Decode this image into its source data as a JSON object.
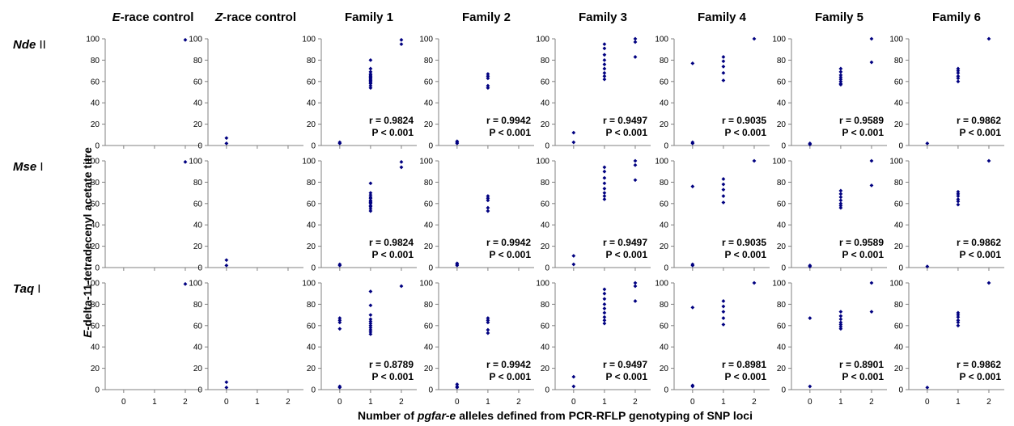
{
  "figure": {
    "ylabel": {
      "italic": "E",
      "rest": "-delta-11-tetradecenyl acetate titre"
    },
    "xlabel": {
      "pre": "Number of ",
      "italic": "pgfar-e",
      "post": " alleles defined from PCR-RFLP genotyping of SNP loci"
    },
    "y_ticks": [
      "0",
      "20",
      "40",
      "60",
      "80",
      "100"
    ],
    "x_ticks": [
      "0",
      "1",
      "2"
    ],
    "marker_color": "#000080"
  },
  "columns": [
    {
      "italic": "E",
      "rest": "-race control"
    },
    {
      "italic": "Z",
      "rest": "-race control"
    },
    {
      "italic": "",
      "rest": "Family 1"
    },
    {
      "italic": "",
      "rest": "Family 2"
    },
    {
      "italic": "",
      "rest": "Family 3"
    },
    {
      "italic": "",
      "rest": "Family 4"
    },
    {
      "italic": "",
      "rest": "Family 5"
    },
    {
      "italic": "",
      "rest": "Family 6"
    }
  ],
  "rows": [
    {
      "bold": "Nde",
      "rest": " II"
    },
    {
      "bold": "Mse",
      "rest": " I"
    },
    {
      "bold": "Taq",
      "rest": " I"
    }
  ],
  "chart_data": {
    "type": "scatter",
    "xlim": [
      -0.6,
      2.5
    ],
    "ylim": [
      0,
      100
    ],
    "grid": false,
    "panels": [
      [
        {
          "points": [
            [
              2,
              99
            ]
          ]
        },
        {
          "points": [
            [
              0,
              7
            ],
            [
              0,
              2
            ]
          ]
        },
        {
          "points": [
            [
              0,
              3
            ],
            [
              0,
              2
            ],
            [
              1,
              80
            ],
            [
              1,
              72
            ],
            [
              1,
              69
            ],
            [
              1,
              67
            ],
            [
              1,
              66
            ],
            [
              1,
              65
            ],
            [
              1,
              64
            ],
            [
              1,
              63
            ],
            [
              1,
              62
            ],
            [
              1,
              61
            ],
            [
              1,
              60
            ],
            [
              1,
              59
            ],
            [
              1,
              58
            ],
            [
              1,
              56
            ],
            [
              1,
              54
            ],
            [
              2,
              99
            ],
            [
              2,
              95
            ]
          ],
          "stats": [
            "r = 0.9824",
            "P < 0.001"
          ]
        },
        {
          "points": [
            [
              0,
              4
            ],
            [
              0,
              3
            ],
            [
              0,
              2
            ],
            [
              1,
              67
            ],
            [
              1,
              65
            ],
            [
              1,
              63
            ],
            [
              1,
              56
            ],
            [
              1,
              54
            ]
          ],
          "stats": [
            "r = 0.9942",
            "P < 0.001"
          ]
        },
        {
          "points": [
            [
              0,
              12
            ],
            [
              0,
              3
            ],
            [
              1,
              95
            ],
            [
              1,
              91
            ],
            [
              1,
              85
            ],
            [
              1,
              80
            ],
            [
              1,
              76
            ],
            [
              1,
              72
            ],
            [
              1,
              68
            ],
            [
              1,
              65
            ],
            [
              1,
              62
            ],
            [
              2,
              100
            ],
            [
              2,
              97
            ],
            [
              2,
              83
            ]
          ],
          "stats": [
            "r = 0.9497",
            "P < 0.001"
          ]
        },
        {
          "points": [
            [
              0,
              77
            ],
            [
              0,
              3
            ],
            [
              0,
              2
            ],
            [
              1,
              83
            ],
            [
              1,
              79
            ],
            [
              1,
              74
            ],
            [
              1,
              68
            ],
            [
              1,
              61
            ],
            [
              2,
              100
            ]
          ],
          "stats": [
            "r = 0.9035",
            "P < 0.001"
          ]
        },
        {
          "points": [
            [
              0,
              2
            ],
            [
              0,
              1
            ],
            [
              1,
              72
            ],
            [
              1,
              69
            ],
            [
              1,
              66
            ],
            [
              1,
              64
            ],
            [
              1,
              62
            ],
            [
              1,
              60
            ],
            [
              1,
              58
            ],
            [
              1,
              57
            ],
            [
              2,
              100
            ],
            [
              2,
              78
            ]
          ],
          "stats": [
            "r = 0.9589",
            "P < 0.001"
          ]
        },
        {
          "points": [
            [
              0,
              2
            ],
            [
              1,
              72
            ],
            [
              1,
              70
            ],
            [
              1,
              68
            ],
            [
              1,
              65
            ],
            [
              1,
              63
            ],
            [
              1,
              60
            ],
            [
              2,
              100
            ]
          ],
          "stats": [
            "r = 0.9862",
            "P < 0.001"
          ]
        }
      ],
      [
        {
          "points": [
            [
              2,
              99
            ]
          ]
        },
        {
          "points": [
            [
              0,
              7
            ],
            [
              0,
              2
            ]
          ]
        },
        {
          "points": [
            [
              0,
              3
            ],
            [
              0,
              2
            ],
            [
              1,
              79
            ],
            [
              1,
              70
            ],
            [
              1,
              68
            ],
            [
              1,
              66
            ],
            [
              1,
              65
            ],
            [
              1,
              63
            ],
            [
              1,
              62
            ],
            [
              1,
              61
            ],
            [
              1,
              60
            ],
            [
              1,
              58
            ],
            [
              1,
              57
            ],
            [
              1,
              55
            ],
            [
              1,
              53
            ],
            [
              2,
              99
            ],
            [
              2,
              94
            ]
          ],
          "stats": [
            "r = 0.9824",
            "P < 0.001"
          ]
        },
        {
          "points": [
            [
              0,
              4
            ],
            [
              0,
              3
            ],
            [
              0,
              2
            ],
            [
              1,
              67
            ],
            [
              1,
              65
            ],
            [
              1,
              63
            ],
            [
              1,
              56
            ],
            [
              1,
              53
            ]
          ],
          "stats": [
            "r = 0.9942",
            "P < 0.001"
          ]
        },
        {
          "points": [
            [
              0,
              11
            ],
            [
              0,
              3
            ],
            [
              1,
              94
            ],
            [
              1,
              90
            ],
            [
              1,
              84
            ],
            [
              1,
              79
            ],
            [
              1,
              74
            ],
            [
              1,
              70
            ],
            [
              1,
              67
            ],
            [
              1,
              64
            ],
            [
              2,
              100
            ],
            [
              2,
              96
            ],
            [
              2,
              82
            ]
          ],
          "stats": [
            "r = 0.9497",
            "P < 0.001"
          ]
        },
        {
          "points": [
            [
              0,
              76
            ],
            [
              0,
              3
            ],
            [
              0,
              2
            ],
            [
              1,
              83
            ],
            [
              1,
              78
            ],
            [
              1,
              73
            ],
            [
              1,
              67
            ],
            [
              1,
              61
            ],
            [
              2,
              100
            ]
          ],
          "stats": [
            "r = 0.9035",
            "P < 0.001"
          ]
        },
        {
          "points": [
            [
              0,
              2
            ],
            [
              0,
              1
            ],
            [
              1,
              72
            ],
            [
              1,
              69
            ],
            [
              1,
              66
            ],
            [
              1,
              63
            ],
            [
              1,
              60
            ],
            [
              1,
              58
            ],
            [
              1,
              56
            ],
            [
              2,
              100
            ],
            [
              2,
              77
            ]
          ],
          "stats": [
            "r = 0.9589",
            "P < 0.001"
          ]
        },
        {
          "points": [
            [
              0,
              1
            ],
            [
              1,
              71
            ],
            [
              1,
              69
            ],
            [
              1,
              67
            ],
            [
              1,
              64
            ],
            [
              1,
              62
            ],
            [
              1,
              59
            ],
            [
              2,
              100
            ]
          ],
          "stats": [
            "r = 0.9862",
            "P < 0.001"
          ]
        }
      ],
      [
        {
          "points": [
            [
              2,
              99
            ]
          ]
        },
        {
          "points": [
            [
              0,
              7
            ],
            [
              0,
              2
            ]
          ]
        },
        {
          "points": [
            [
              0,
              67
            ],
            [
              0,
              65
            ],
            [
              0,
              63
            ],
            [
              0,
              57
            ],
            [
              0,
              3
            ],
            [
              0,
              2
            ],
            [
              1,
              92
            ],
            [
              1,
              79
            ],
            [
              1,
              70
            ],
            [
              1,
              66
            ],
            [
              1,
              64
            ],
            [
              1,
              62
            ],
            [
              1,
              60
            ],
            [
              1,
              58
            ],
            [
              1,
              56
            ],
            [
              1,
              54
            ],
            [
              1,
              52
            ],
            [
              2,
              97
            ]
          ],
          "stats": [
            "r = 0.8789",
            "P < 0.001"
          ]
        },
        {
          "points": [
            [
              0,
              5
            ],
            [
              0,
              3
            ],
            [
              0,
              2
            ],
            [
              1,
              67
            ],
            [
              1,
              65
            ],
            [
              1,
              63
            ],
            [
              1,
              56
            ],
            [
              1,
              53
            ]
          ],
          "stats": [
            "r = 0.9942",
            "P < 0.001"
          ]
        },
        {
          "points": [
            [
              0,
              12
            ],
            [
              0,
              3
            ],
            [
              1,
              94
            ],
            [
              1,
              90
            ],
            [
              1,
              85
            ],
            [
              1,
              80
            ],
            [
              1,
              76
            ],
            [
              1,
              72
            ],
            [
              1,
              68
            ],
            [
              1,
              65
            ],
            [
              1,
              62
            ],
            [
              2,
              100
            ],
            [
              2,
              97
            ],
            [
              2,
              83
            ]
          ],
          "stats": [
            "r = 0.9497",
            "P < 0.001"
          ]
        },
        {
          "points": [
            [
              0,
              77
            ],
            [
              0,
              4
            ],
            [
              0,
              3
            ],
            [
              1,
              83
            ],
            [
              1,
              78
            ],
            [
              1,
              73
            ],
            [
              1,
              67
            ],
            [
              1,
              61
            ],
            [
              2,
              100
            ]
          ],
          "stats": [
            "r = 0.8981",
            "P < 0.001"
          ]
        },
        {
          "points": [
            [
              0,
              67
            ],
            [
              0,
              3
            ],
            [
              1,
              73
            ],
            [
              1,
              69
            ],
            [
              1,
              66
            ],
            [
              1,
              63
            ],
            [
              1,
              61
            ],
            [
              1,
              59
            ],
            [
              1,
              57
            ],
            [
              2,
              100
            ],
            [
              2,
              73
            ]
          ],
          "stats": [
            "r = 0.8901",
            "P < 0.001"
          ]
        },
        {
          "points": [
            [
              0,
              2
            ],
            [
              1,
              72
            ],
            [
              1,
              70
            ],
            [
              1,
              68
            ],
            [
              1,
              65
            ],
            [
              1,
              63
            ],
            [
              1,
              60
            ],
            [
              2,
              100
            ]
          ],
          "stats": [
            "r = 0.9862",
            "P < 0.001"
          ]
        }
      ]
    ]
  }
}
